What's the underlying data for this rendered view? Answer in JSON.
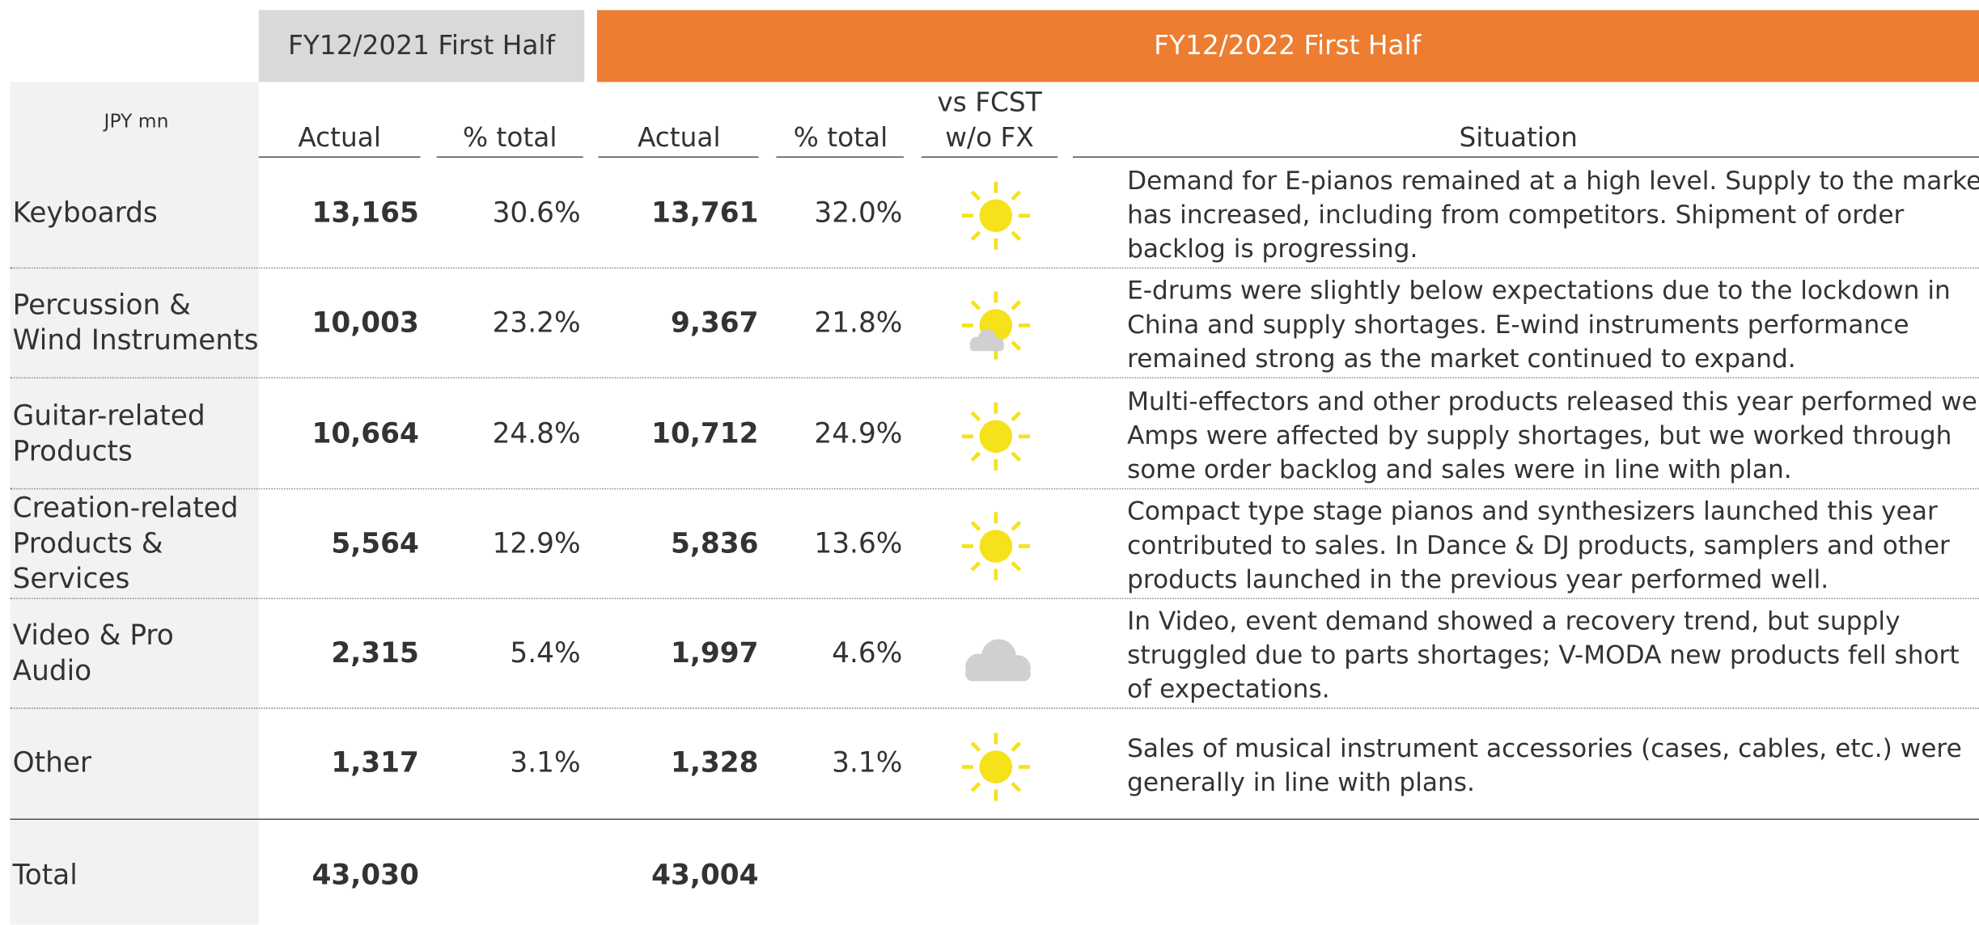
{
  "header": {
    "groups": [
      "FY12/2021 First Half",
      "FY12/2022 First Half"
    ],
    "unit": "JPY mn",
    "columns": [
      "Actual",
      "% total",
      "Actual",
      "% total",
      [
        "vs FCST",
        "w/o FX"
      ],
      "Situation"
    ]
  },
  "rows": [
    {
      "label": [
        "Keyboards"
      ],
      "actual_2021": "13,165",
      "share_2021": "30.6%",
      "actual_2022": "13,761",
      "share_2022": "32.0%",
      "situation": [
        "Demand for E-pianos remained at a high level. Supply to the market",
        "has increased, including from competitors. Shipment of order",
        "backlog is progressing."
      ]
    },
    {
      "label": [
        "Percussion &",
        "Wind Instruments"
      ],
      "actual_2021": "10,003",
      "share_2021": "23.2%",
      "actual_2022": "9,367",
      "share_2022": "21.8%",
      "situation": [
        "E-drums were slightly below expectations due to the lockdown in",
        "China and supply shortages. E-wind instruments performance",
        "remained strong as the market continued to expand."
      ]
    },
    {
      "label": [
        "Guitar-related",
        "Products"
      ],
      "actual_2021": "10,664",
      "share_2021": "24.8%",
      "actual_2022": "10,712",
      "share_2022": "24.9%",
      "situation": [
        "Multi-effectors and other products released this year performed well.",
        "Amps were affected by supply shortages, but we worked through",
        "some order backlog and sales were in line with plan."
      ]
    },
    {
      "label": [
        "Creation-related",
        "Products &",
        "Services"
      ],
      "actual_2021": "5,564",
      "share_2021": "12.9%",
      "actual_2022": "5,836",
      "share_2022": "13.6%",
      "situation": [
        "Compact type stage pianos and synthesizers launched this year",
        "contributed to sales. In Dance & DJ products, samplers and other",
        "products launched in the previous year performed well."
      ]
    },
    {
      "label": [
        "Video & Pro",
        "Audio"
      ],
      "actual_2021": "2,315",
      "share_2021": "5.4%",
      "actual_2022": "1,997",
      "share_2022": "4.6%",
      "situation": [
        "In Video, event demand showed a recovery trend, but supply",
        "struggled due to parts shortages; V-MODA new products fell short",
        "of expectations."
      ]
    },
    {
      "label": [
        "Other"
      ],
      "actual_2021": "1,317",
      "share_2021": "3.1%",
      "actual_2022": "1,328",
      "share_2022": "3.1%",
      "situation": [
        "Sales of musical instrument accessories (cases, cables, etc.) were",
        "generally in line with plans."
      ]
    }
  ],
  "total": {
    "label": "Total",
    "actual_2021": "43,030",
    "actual_2022": "43,004"
  }
}
